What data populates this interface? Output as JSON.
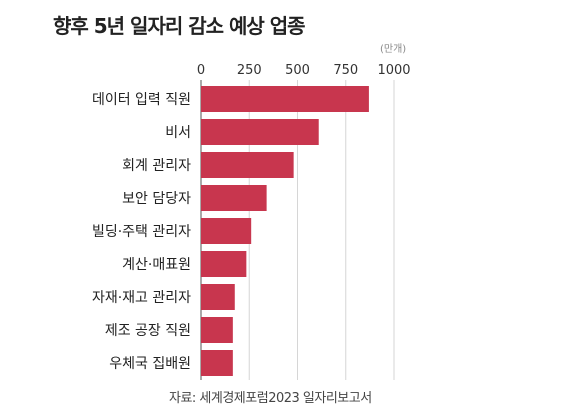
{
  "title": "향후 5년 일자리 감소 예상 업종",
  "unit": "(만개)",
  "source": "자료: 세계경제포럼2023 일자리보고서",
  "colors": {
    "bar": "#c8364e",
    "grid": "#d6d6d6",
    "axis": "#555555"
  },
  "chart_data": {
    "type": "bar",
    "orientation": "horizontal",
    "title": "향후 5년 일자리 감소 예상 업종",
    "xlabel": "",
    "ylabel": "",
    "unit": "(만개)",
    "xlim": [
      0,
      1000
    ],
    "xticks": [
      0,
      250,
      500,
      750,
      1000
    ],
    "categories": [
      "데이터 입력 직원",
      "비서",
      "회계 관리자",
      "보안 담당자",
      "빌딩·주택 관리자",
      "계산·매표원",
      "자재·재고 관리자",
      "제조 공장 직원",
      "우체국 집배원"
    ],
    "values": [
      870,
      610,
      480,
      340,
      260,
      235,
      175,
      165,
      165
    ],
    "grid": true,
    "legend": false
  }
}
